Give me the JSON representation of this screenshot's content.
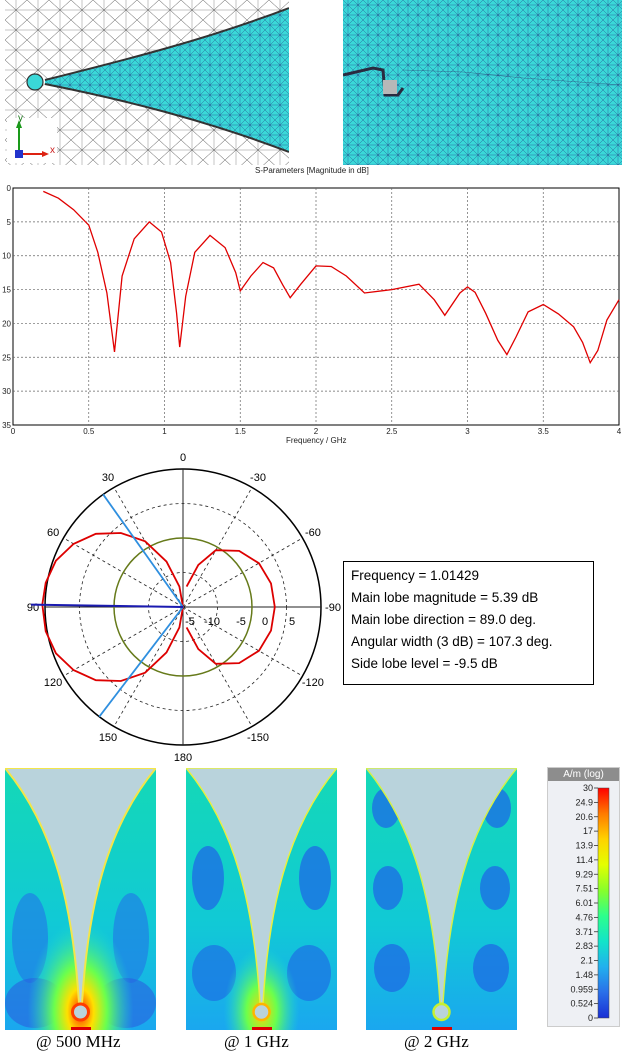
{
  "mesh_panels": {
    "left_axes": {
      "y": "y",
      "x": "x"
    }
  },
  "sparam_plot": {
    "title": "S-Parameters [Magnitude in dB]",
    "xlabel": "Frequency / GHz",
    "line_color": "#e00000"
  },
  "chart_data": [
    {
      "type": "line",
      "title": "S-Parameters [Magnitude in dB]",
      "xlabel": "Frequency / GHz",
      "ylabel": "",
      "xlim": [
        0,
        4
      ],
      "ylim": [
        -35,
        0
      ],
      "x_ticks": [
        "0",
        "0.5",
        "1",
        "1.5",
        "2",
        "2.5",
        "3",
        "3.5",
        "4"
      ],
      "y_ticks": [
        "0",
        "-5",
        "-10",
        "-15",
        "-20",
        "-25",
        "-30",
        "-35"
      ],
      "y_tick_labels_visible": [
        "0",
        "5",
        "10",
        "15",
        "20",
        "25",
        "30",
        "35"
      ],
      "grid": true,
      "series": [
        {
          "color": "#e00000",
          "x": [
            0.2,
            0.3,
            0.4,
            0.5,
            0.56,
            0.62,
            0.67,
            0.72,
            0.8,
            0.9,
            0.98,
            1.04,
            1.08,
            1.1,
            1.14,
            1.2,
            1.3,
            1.4,
            1.47,
            1.5,
            1.57,
            1.65,
            1.72,
            1.78,
            1.83,
            1.9,
            2.0,
            2.1,
            2.2,
            2.32,
            2.5,
            2.68,
            2.78,
            2.85,
            2.95,
            3.0,
            3.05,
            3.12,
            3.2,
            3.26,
            3.32,
            3.4,
            3.5,
            3.6,
            3.7,
            3.76,
            3.81,
            3.86,
            3.92,
            4.0
          ],
          "y": [
            -0.5,
            -1.5,
            -3.2,
            -5.5,
            -9.5,
            -15.5,
            -24.2,
            -13.0,
            -7.5,
            -5.0,
            -6.5,
            -11.0,
            -18.5,
            -23.5,
            -16.0,
            -9.5,
            -7.0,
            -8.8,
            -12.5,
            -15.2,
            -13.0,
            -11.0,
            -11.8,
            -14.3,
            -16.2,
            -14.2,
            -11.5,
            -11.6,
            -13.0,
            -15.5,
            -15.0,
            -14.2,
            -16.5,
            -18.8,
            -15.5,
            -14.6,
            -15.4,
            -18.5,
            -22.5,
            -24.6,
            -22.0,
            -18.3,
            -17.2,
            -18.6,
            -20.5,
            -22.8,
            -25.8,
            -24.0,
            -19.5,
            -16.5
          ]
        }
      ]
    },
    {
      "type": "polar",
      "angle_labels": [
        "0",
        "-30",
        "-60",
        "-90",
        "-120",
        "-150",
        "180",
        "150",
        "120",
        "90",
        "60",
        "30"
      ],
      "radial_labels": [
        "-5",
        "-10",
        "-5",
        "0",
        "5"
      ],
      "radial_range_db": [
        -15,
        5
      ],
      "series": [
        {
          "name": "",
          "color": "#dd0000",
          "angles_deg": [
            0,
            10,
            20,
            30,
            40,
            50,
            60,
            70,
            80,
            89,
            100,
            110,
            120,
            130,
            140,
            150,
            160,
            170,
            180
          ],
          "gain_db": [
            -15,
            -12,
            -8,
            -4,
            -1,
            1.5,
            3.3,
            4.6,
            5.2,
            5.39,
            5.2,
            4.6,
            3.3,
            1.5,
            -1,
            -4,
            -8,
            -12,
            -15
          ]
        },
        {
          "name": "",
          "color": "#dd0000",
          "angles_deg": [
            -10,
            -20,
            -30,
            -45,
            -60,
            -75,
            -90,
            -105,
            -120,
            -135,
            -150,
            -160,
            -170
          ],
          "gain_db": [
            -12,
            -8.5,
            -5.5,
            -3.5,
            -2.3,
            -1.8,
            -1.7,
            -1.8,
            -2.3,
            -3.5,
            -5.5,
            -8.5,
            -12
          ]
        }
      ],
      "reference_circle_db": -5,
      "main_lobe_direction_deg": 89.0,
      "beamwidth_lines_deg": [
        35.35,
        142.65
      ],
      "side_lobe_level_db": -9.5
    }
  ],
  "polar_info": {
    "lines": [
      "Frequency = 1.01429",
      "Main lobe magnitude =      5.39 dB",
      "Main lobe direction =   89.0 deg.",
      "Angular width (3 dB) =  107.3 deg.",
      "Side lobe level =   -9.5 dB"
    ]
  },
  "field_maps": {
    "captions": [
      "@ 500 MHz",
      "@ 1 GHz",
      "@ 2 GHz"
    ]
  },
  "colorbar": {
    "title": "A/m (log)",
    "ticks": [
      "30",
      "24.9",
      "20.6",
      "17",
      "13.9",
      "11.4",
      "9.29",
      "7.51",
      "6.01",
      "4.76",
      "3.71",
      "2.83",
      "2.1",
      "1.48",
      "0.959",
      "0.524",
      "0"
    ],
    "colors": [
      "#ff0000",
      "#ff7a00",
      "#ffd200",
      "#e4ff00",
      "#88ff2a",
      "#2dff8c",
      "#12e4c9",
      "#22b0ee",
      "#2a6fe9",
      "#1a2fd4"
    ]
  }
}
